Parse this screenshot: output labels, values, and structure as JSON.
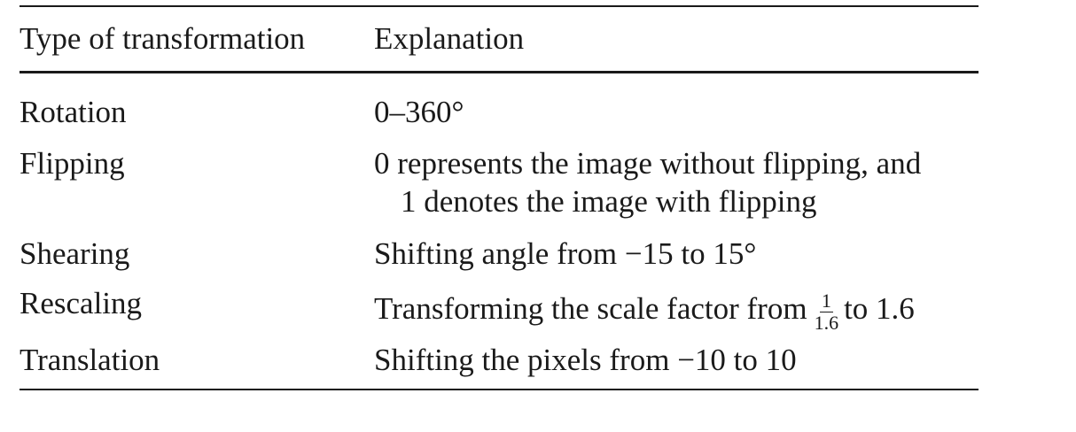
{
  "table": {
    "headers": {
      "type": "Type of transformation",
      "explanation": "Explanation"
    },
    "rows": [
      {
        "type": "Rotation",
        "explanation": "0–360°"
      },
      {
        "type": "Flipping",
        "explanation_line1": "0 represents the image without flipping, and",
        "explanation_line2": "1 denotes the image with flipping"
      },
      {
        "type": "Shearing",
        "explanation": "Shifting angle from −15 to 15°"
      },
      {
        "type": "Rescaling",
        "explanation_prefix": "Transforming the scale factor from",
        "fraction_numerator": "1",
        "fraction_denominator": "1.6",
        "explanation_suffix": "to 1.6"
      },
      {
        "type": "Translation",
        "explanation": "Shifting the pixels from −10 to 10"
      }
    ]
  }
}
